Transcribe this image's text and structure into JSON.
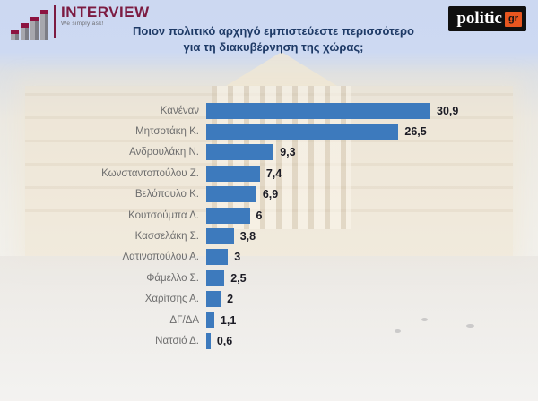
{
  "header": {
    "interview_logo": {
      "name": "INTERVIEW",
      "tagline": "We simply ask!"
    },
    "title_line1": "Ποιον πολιτικό αρχηγό εμπιστεύεστε περισσότερο",
    "title_line2": "για τη διακυβέρνηση της χώρας;",
    "politic_logo": {
      "name": "politic",
      "suffix": "gr"
    }
  },
  "chart_data": {
    "type": "bar",
    "orientation": "horizontal",
    "title": "Ποιον πολιτικό αρχηγό εμπιστεύεστε περισσότερο για τη διακυβέρνηση της χώρας;",
    "categories": [
      "Κανέναν",
      "Μητσοτάκη Κ.",
      "Ανδρουλάκη Ν.",
      "Κωνσταντοπούλου Ζ.",
      "Βελόπουλο Κ.",
      "Κουτσούμπα Δ.",
      "Κασσελάκη Σ.",
      "Λατινοπούλου Α.",
      "Φάμελλο Σ.",
      "Χαρίτσης Α.",
      "ΔΓ/ΔΑ",
      "Νατσιό Δ."
    ],
    "values": [
      30.9,
      26.5,
      9.3,
      7.4,
      6.9,
      6,
      3.8,
      3,
      2.5,
      2,
      1.1,
      0.6
    ],
    "value_labels": [
      "30,9",
      "26,5",
      "9,3",
      "7,4",
      "6,9",
      "6",
      "3,8",
      "3",
      "2,5",
      "2",
      "1,1",
      "0,6"
    ],
    "xlabel": "",
    "ylabel": "",
    "xlim": [
      0,
      33
    ],
    "grid": false,
    "legend": false,
    "value_labels_position": "end-of-bar"
  },
  "colors": {
    "bar": "#3d7abd",
    "title_text": "#1e3a66",
    "category_text": "#6e6e6e",
    "value_text": "#1b1b24",
    "background_sky": "#cdd9f2",
    "interview_maroon": "#7c1b41",
    "politic_black": "#101010",
    "politic_orange": "#e8561f"
  }
}
